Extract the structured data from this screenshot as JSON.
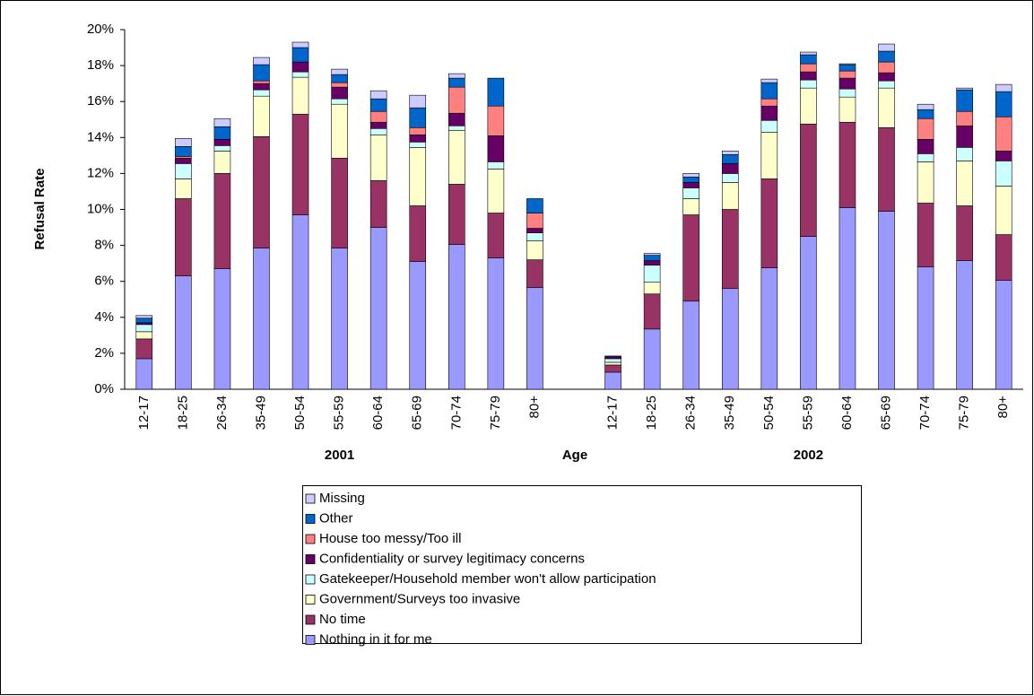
{
  "chart_data": {
    "type": "stacked_bar",
    "ylabel": "Refusal Rate",
    "xlabel": "Age",
    "x_group_labels": [
      "2001",
      "2002"
    ],
    "categories": [
      "12-17",
      "18-25",
      "26-34",
      "35-49",
      "50-54",
      "55-59",
      "60-64",
      "65-69",
      "70-74",
      "75-79",
      "80+",
      null,
      "12-17",
      "18-25",
      "26-34",
      "35-49",
      "50-54",
      "55-59",
      "60-64",
      "65-69",
      "70-74",
      "75-79",
      "80+"
    ],
    "series": [
      {
        "name": "Nothing in it for me",
        "color": "#9999ff",
        "values": [
          1.7,
          6.3,
          6.7,
          7.85,
          9.7,
          7.85,
          9.0,
          7.1,
          8.05,
          7.3,
          5.65,
          null,
          0.95,
          3.35,
          4.9,
          5.6,
          6.75,
          8.5,
          10.1,
          9.9,
          6.8,
          7.15,
          6.05
        ]
      },
      {
        "name": "No time",
        "color": "#993366",
        "values": [
          1.1,
          4.3,
          5.3,
          6.2,
          5.6,
          5.0,
          2.6,
          3.1,
          3.35,
          2.5,
          1.55,
          null,
          0.4,
          1.95,
          4.8,
          4.4,
          4.95,
          6.25,
          4.75,
          4.65,
          3.55,
          3.05,
          2.55
        ]
      },
      {
        "name": "Government/Surveys too invasive",
        "color": "#ffffcc",
        "values": [
          0.4,
          1.1,
          1.25,
          2.25,
          2.05,
          3.0,
          2.55,
          3.25,
          3.0,
          2.45,
          1.05,
          null,
          0.15,
          0.65,
          0.9,
          1.5,
          2.6,
          2.0,
          1.4,
          2.2,
          2.3,
          2.5,
          2.7
        ]
      },
      {
        "name": "Gatekeeper/Household member won't allow participation",
        "color": "#ccffff",
        "values": [
          0.4,
          0.85,
          0.3,
          0.35,
          0.3,
          0.3,
          0.35,
          0.3,
          0.25,
          0.4,
          0.45,
          null,
          0.2,
          0.95,
          0.6,
          0.5,
          0.65,
          0.45,
          0.45,
          0.4,
          0.45,
          0.75,
          1.4
        ]
      },
      {
        "name": "Confidentiality or survey legitimacy concerns",
        "color": "#660066",
        "values": [
          0.1,
          0.3,
          0.35,
          0.35,
          0.55,
          0.65,
          0.35,
          0.4,
          0.7,
          1.45,
          0.25,
          null,
          0.1,
          0.25,
          0.3,
          0.55,
          0.8,
          0.45,
          0.6,
          0.45,
          0.8,
          1.2,
          0.55
        ]
      },
      {
        "name": "House too messy/Too ill",
        "color": "#ff8080",
        "values": [
          0,
          0.1,
          0,
          0.15,
          0,
          0.25,
          0.6,
          0.4,
          1.45,
          1.65,
          0.85,
          null,
          0,
          0,
          0,
          0,
          0.4,
          0.45,
          0.4,
          0.6,
          1.15,
          0.8,
          1.9
        ]
      },
      {
        "name": "Other",
        "color": "#0066cc",
        "values": [
          0.25,
          0.55,
          0.7,
          0.9,
          0.8,
          0.45,
          0.7,
          1.1,
          0.5,
          1.55,
          0.8,
          null,
          0.05,
          0.3,
          0.3,
          0.5,
          0.9,
          0.5,
          0.35,
          0.6,
          0.5,
          1.2,
          1.4
        ]
      },
      {
        "name": "Missing",
        "color": "#ccccff",
        "values": [
          0.15,
          0.45,
          0.45,
          0.4,
          0.3,
          0.3,
          0.45,
          0.7,
          0.25,
          0,
          0,
          null,
          0,
          0.1,
          0.2,
          0.2,
          0.2,
          0.15,
          0.05,
          0.4,
          0.3,
          0.1,
          0.4
        ]
      }
    ],
    "ylim": [
      0,
      20
    ],
    "yticks": [
      {
        "value": 0,
        "label": "0%"
      },
      {
        "value": 2,
        "label": "2%"
      },
      {
        "value": 4,
        "label": "4%"
      },
      {
        "value": 6,
        "label": "6%"
      },
      {
        "value": 8,
        "label": "8%"
      },
      {
        "value": 10,
        "label": "10%"
      },
      {
        "value": 12,
        "label": "12%"
      },
      {
        "value": 14,
        "label": "14%"
      },
      {
        "value": 16,
        "label": "16%"
      },
      {
        "value": 18,
        "label": "18%"
      },
      {
        "value": 20,
        "label": "20%"
      }
    ],
    "grid": false
  }
}
